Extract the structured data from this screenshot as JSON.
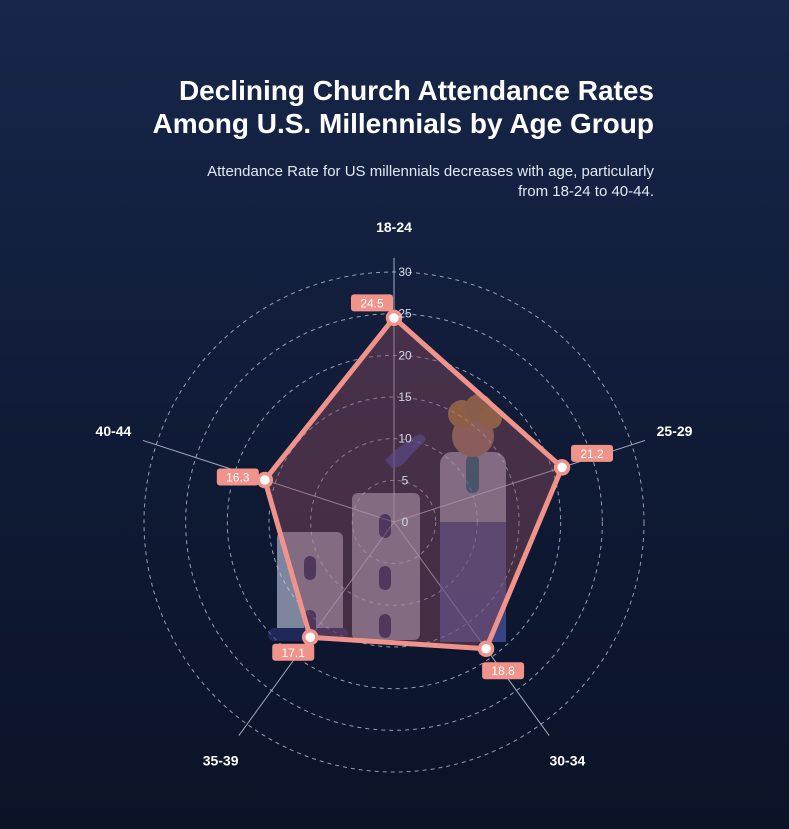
{
  "header": {
    "title_line1": "Declining Church Attendance Rates",
    "title_line2": "Among U.S. Millennials by Age Group",
    "subtitle_line1": "Attendance Rate for US millennials decreases with age, particularly",
    "subtitle_line2": "from 18-24 to 40-44."
  },
  "chart_data": {
    "type": "radar",
    "categories": [
      "18-24",
      "25-29",
      "30-34",
      "35-39",
      "40-44"
    ],
    "series": [
      {
        "values": [
          24.5,
          21.2,
          18.8,
          17.1,
          16.3
        ]
      }
    ],
    "radial_range": [
      0,
      30
    ],
    "radial_ticks": [
      0,
      5,
      10,
      15,
      20,
      25,
      30
    ],
    "grid": true,
    "legend": "none",
    "colors": {
      "line": "#f0938a",
      "fill": "#8a4b60",
      "label_bg": "#f0938a",
      "grid": "#c4cadb",
      "axis": "#c9cfdd"
    }
  },
  "decoration": {
    "illustration": "church-buildings-and-person-illustration"
  }
}
